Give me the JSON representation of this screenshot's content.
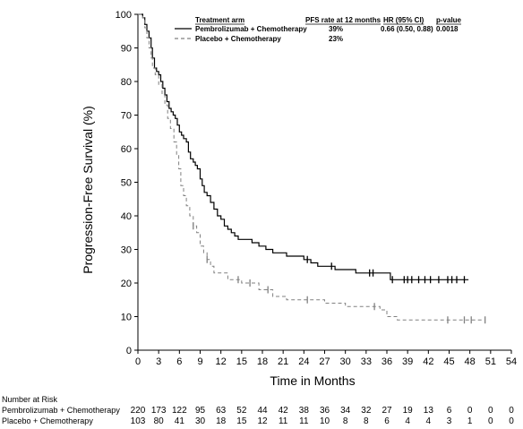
{
  "chart_data": {
    "type": "line",
    "ylabel": "Progression-Free Survival (%)",
    "xlabel": "Time in Months",
    "xlim": [
      0,
      54
    ],
    "ylim": [
      0,
      100
    ],
    "xticks": [
      0,
      3,
      6,
      9,
      12,
      15,
      18,
      21,
      24,
      27,
      30,
      33,
      36,
      39,
      42,
      45,
      48,
      51,
      54
    ],
    "yticks": [
      0,
      10,
      20,
      30,
      40,
      50,
      60,
      70,
      80,
      90,
      100
    ],
    "legend": {
      "placement": "top-right",
      "headers": {
        "arm": "Treatment arm",
        "pfs": "PFS rate at 12 months",
        "hr": "HR (95% CI)",
        "p": "p-value"
      },
      "rows": [
        {
          "name": "Pembrolizumab + Chemotherapy",
          "pfs": "39%",
          "hr": "0.66 (0.50, 0.88)",
          "p": "0.0018"
        },
        {
          "name": "Placebo + Chemotherapy",
          "pfs": "23%",
          "hr": "",
          "p": ""
        }
      ]
    },
    "series": [
      {
        "name": "Pembrolizumab + Chemotherapy",
        "color": "#000000",
        "dashed": false,
        "points": [
          [
            0,
            100
          ],
          [
            0.5,
            100
          ],
          [
            0.7,
            99
          ],
          [
            1.0,
            97
          ],
          [
            1.3,
            95
          ],
          [
            1.6,
            93
          ],
          [
            1.9,
            90
          ],
          [
            2.1,
            87
          ],
          [
            2.4,
            84
          ],
          [
            2.7,
            83
          ],
          [
            3.0,
            82
          ],
          [
            3.3,
            80
          ],
          [
            3.6,
            78
          ],
          [
            3.9,
            76
          ],
          [
            4.2,
            74
          ],
          [
            4.5,
            72
          ],
          [
            4.8,
            71
          ],
          [
            5.1,
            70
          ],
          [
            5.4,
            69
          ],
          [
            5.7,
            67
          ],
          [
            6.0,
            65
          ],
          [
            6.3,
            64
          ],
          [
            6.6,
            63
          ],
          [
            7.0,
            62
          ],
          [
            7.3,
            59
          ],
          [
            7.6,
            57
          ],
          [
            8.0,
            56
          ],
          [
            8.3,
            55
          ],
          [
            8.6,
            54
          ],
          [
            9.0,
            51
          ],
          [
            9.3,
            49
          ],
          [
            9.6,
            47
          ],
          [
            10.0,
            46
          ],
          [
            10.5,
            44
          ],
          [
            11.0,
            42
          ],
          [
            11.5,
            40
          ],
          [
            12.0,
            39
          ],
          [
            12.5,
            37
          ],
          [
            13.0,
            36
          ],
          [
            13.5,
            35
          ],
          [
            14.0,
            34
          ],
          [
            14.5,
            33
          ],
          [
            15.5,
            33
          ],
          [
            16.5,
            32
          ],
          [
            17.5,
            31
          ],
          [
            18.5,
            30
          ],
          [
            19.5,
            29
          ],
          [
            20.5,
            29
          ],
          [
            21.5,
            28
          ],
          [
            23.0,
            28
          ],
          [
            24.0,
            27
          ],
          [
            25.0,
            26
          ],
          [
            26.0,
            25
          ],
          [
            27.5,
            25
          ],
          [
            28.5,
            24
          ],
          [
            30.0,
            24
          ],
          [
            31.5,
            23
          ],
          [
            33.0,
            23
          ],
          [
            35.5,
            23
          ],
          [
            36.5,
            21
          ],
          [
            37.0,
            21
          ],
          [
            47.8,
            21
          ]
        ],
        "censor_x": [
          24.5,
          28.0,
          33.5,
          34.0,
          36.8,
          38.5,
          39.0,
          39.6,
          40.6,
          41.5,
          42.3,
          43.5,
          44.8,
          45.4,
          46.1,
          47.2
        ]
      },
      {
        "name": "Placebo + Chemotherapy",
        "color": "#808080",
        "dashed": true,
        "points": [
          [
            0,
            100
          ],
          [
            0.5,
            100
          ],
          [
            0.7,
            99
          ],
          [
            1.0,
            96
          ],
          [
            1.3,
            93
          ],
          [
            1.6,
            90
          ],
          [
            1.9,
            87
          ],
          [
            2.1,
            84
          ],
          [
            2.5,
            82
          ],
          [
            3.0,
            79
          ],
          [
            3.5,
            76
          ],
          [
            3.9,
            73
          ],
          [
            4.3,
            69
          ],
          [
            4.7,
            66
          ],
          [
            5.2,
            62
          ],
          [
            5.6,
            58
          ],
          [
            5.9,
            54
          ],
          [
            6.2,
            49
          ],
          [
            6.6,
            46
          ],
          [
            7.0,
            43
          ],
          [
            7.5,
            40
          ],
          [
            8.0,
            37
          ],
          [
            8.5,
            35
          ],
          [
            9.0,
            31
          ],
          [
            9.5,
            29
          ],
          [
            10.0,
            27
          ],
          [
            10.5,
            25
          ],
          [
            11.0,
            23
          ],
          [
            12.0,
            23
          ],
          [
            13.0,
            21
          ],
          [
            14.0,
            21
          ],
          [
            15.0,
            20
          ],
          [
            16.0,
            20
          ],
          [
            17.0,
            20
          ],
          [
            17.5,
            18
          ],
          [
            18.5,
            18
          ],
          [
            19.5,
            16
          ],
          [
            20.5,
            16
          ],
          [
            21.5,
            15
          ],
          [
            25.0,
            15
          ],
          [
            26.0,
            15
          ],
          [
            27.0,
            14
          ],
          [
            29.5,
            14
          ],
          [
            30.0,
            13
          ],
          [
            33.0,
            13
          ],
          [
            35.0,
            12
          ],
          [
            36.0,
            10
          ],
          [
            37.5,
            9
          ],
          [
            38.0,
            9
          ],
          [
            50.0,
            9
          ]
        ],
        "censor_x": [
          8.0,
          10.0,
          14.5,
          16.2,
          18.8,
          24.5,
          34.2,
          44.8,
          47.2,
          48.2,
          50.2
        ]
      }
    ],
    "risk_table": {
      "title": "Number at Risk",
      "times": [
        0,
        3,
        6,
        9,
        12,
        15,
        18,
        21,
        24,
        27,
        30,
        33,
        36,
        39,
        42,
        45,
        48,
        51,
        54
      ],
      "rows": [
        {
          "name": "Pembrolizumab + Chemotherapy",
          "values": [
            "220",
            "173",
            "122",
            "95",
            "63",
            "52",
            "44",
            "42",
            "38",
            "36",
            "34",
            "32",
            "27",
            "19",
            "13",
            "6",
            "0",
            "0",
            "0"
          ]
        },
        {
          "name": "Placebo + Chemotherapy",
          "values": [
            "103",
            "80",
            "41",
            "30",
            "18",
            "15",
            "12",
            "11",
            "11",
            "10",
            "8",
            "8",
            "6",
            "4",
            "4",
            "3",
            "1",
            "0",
            "0"
          ]
        }
      ]
    }
  }
}
